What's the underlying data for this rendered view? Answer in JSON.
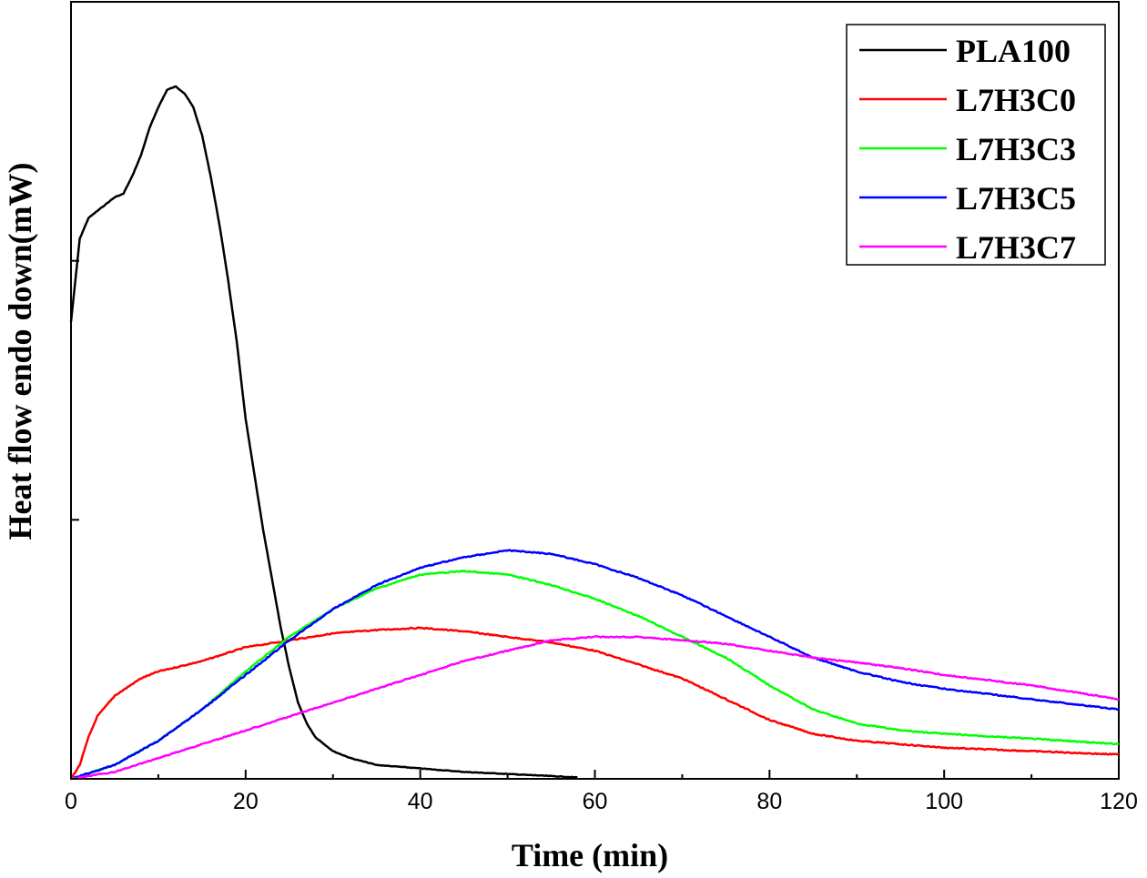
{
  "chart_data": {
    "type": "line",
    "title": "",
    "xlabel": "Time (min)",
    "ylabel": "Heat flow endo down(mW)",
    "xlim": [
      0,
      120
    ],
    "ylim": [
      0,
      1.0
    ],
    "x_ticks": [
      "0",
      "20",
      "40",
      "60",
      "80",
      "100",
      "120"
    ],
    "y_tick_labels_shown": false,
    "grid": false,
    "legend_position": "top-right",
    "series": [
      {
        "name": "PLA100",
        "color": "#000000",
        "x": [
          0,
          1,
          2,
          4,
          5,
          6,
          7,
          8,
          9,
          10,
          11,
          12,
          13,
          14,
          15,
          16,
          17,
          18,
          19,
          20,
          21,
          22,
          23,
          24,
          25,
          26,
          27,
          28,
          30,
          32,
          35,
          40,
          45,
          50,
          55,
          58
        ],
        "y": [
          0.66,
          0.78,
          0.81,
          0.83,
          0.84,
          0.845,
          0.87,
          0.9,
          0.94,
          0.97,
          0.995,
          1.0,
          0.99,
          0.97,
          0.93,
          0.87,
          0.8,
          0.72,
          0.63,
          0.52,
          0.44,
          0.36,
          0.29,
          0.22,
          0.16,
          0.11,
          0.08,
          0.06,
          0.04,
          0.03,
          0.02,
          0.015,
          0.01,
          0.007,
          0.004,
          0.002
        ]
      },
      {
        "name": "L7H3C0",
        "color": "#ff0000",
        "x": [
          0,
          1,
          2,
          3,
          5,
          8,
          10,
          15,
          20,
          25,
          30,
          35,
          40,
          45,
          50,
          55,
          60,
          65,
          70,
          75,
          80,
          85,
          90,
          95,
          100,
          110,
          120
        ],
        "y": [
          0,
          0.02,
          0.06,
          0.09,
          0.12,
          0.145,
          0.155,
          0.17,
          0.19,
          0.2,
          0.21,
          0.215,
          0.218,
          0.213,
          0.205,
          0.197,
          0.185,
          0.165,
          0.145,
          0.115,
          0.085,
          0.065,
          0.055,
          0.05,
          0.045,
          0.04,
          0.035
        ]
      },
      {
        "name": "L7H3C3",
        "color": "#00ff00",
        "x": [
          0,
          5,
          10,
          15,
          20,
          25,
          30,
          35,
          40,
          45,
          50,
          55,
          60,
          65,
          70,
          75,
          80,
          85,
          90,
          95,
          100,
          110,
          120
        ],
        "y": [
          0,
          0.02,
          0.055,
          0.1,
          0.155,
          0.205,
          0.245,
          0.275,
          0.295,
          0.3,
          0.295,
          0.28,
          0.26,
          0.235,
          0.205,
          0.175,
          0.135,
          0.1,
          0.08,
          0.07,
          0.065,
          0.058,
          0.05
        ]
      },
      {
        "name": "L7H3C5",
        "color": "#0000ff",
        "x": [
          0,
          5,
          10,
          15,
          20,
          25,
          30,
          35,
          40,
          45,
          50,
          55,
          60,
          65,
          70,
          75,
          80,
          85,
          90,
          95,
          100,
          110,
          120
        ],
        "y": [
          0,
          0.02,
          0.055,
          0.1,
          0.15,
          0.2,
          0.245,
          0.28,
          0.305,
          0.32,
          0.33,
          0.325,
          0.31,
          0.29,
          0.265,
          0.235,
          0.205,
          0.175,
          0.155,
          0.14,
          0.13,
          0.115,
          0.1
        ]
      },
      {
        "name": "L7H3C7",
        "color": "#ff00ff",
        "x": [
          0,
          5,
          10,
          15,
          20,
          25,
          30,
          35,
          40,
          45,
          50,
          55,
          60,
          65,
          70,
          75,
          80,
          85,
          90,
          95,
          100,
          110,
          120
        ],
        "y": [
          0,
          0.01,
          0.03,
          0.05,
          0.07,
          0.09,
          0.11,
          0.13,
          0.15,
          0.17,
          0.185,
          0.2,
          0.205,
          0.205,
          0.2,
          0.195,
          0.185,
          0.175,
          0.168,
          0.16,
          0.15,
          0.135,
          0.115
        ]
      }
    ]
  }
}
